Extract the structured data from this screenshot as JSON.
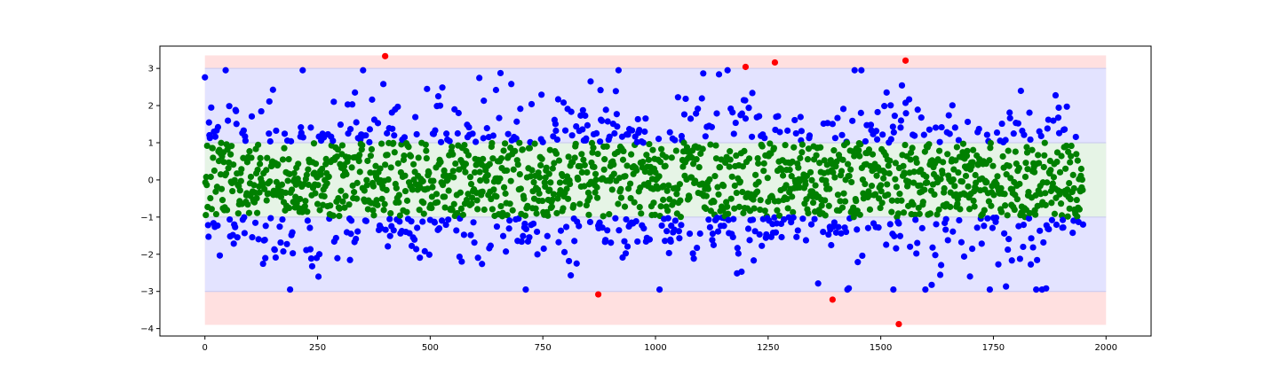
{
  "chart_data": {
    "type": "scatter",
    "title": "",
    "xlabel": "",
    "ylabel": "",
    "xlim": [
      -100,
      2100
    ],
    "ylim": [
      -4.2,
      3.6
    ],
    "x_ticks": [
      0,
      250,
      500,
      750,
      1000,
      1250,
      1500,
      1750,
      2000
    ],
    "x_tick_labels": [
      "0",
      "250",
      "500",
      "750",
      "1000",
      "1250",
      "1500",
      "1750",
      "2000"
    ],
    "y_ticks": [
      -4,
      -3,
      -2,
      -1,
      0,
      1,
      2,
      3
    ],
    "y_tick_labels": [
      "−4",
      "−3",
      "−2",
      "−1",
      "0",
      "1",
      "2",
      "3"
    ],
    "grid": false,
    "legend": "none",
    "bands": [
      {
        "y": [
          -3.9,
          3.35
        ],
        "x": [
          0,
          2000
        ],
        "color": "#ffe0e0"
      },
      {
        "y": [
          -3,
          3
        ],
        "x": [
          0,
          2000
        ],
        "color": "#e3e3ff"
      },
      {
        "y": [
          -1,
          1
        ],
        "x": [
          0,
          2000
        ],
        "color": "#e6f4e6"
      }
    ],
    "band_edge_color": "#c8c8ee",
    "sample": {
      "n": 1950,
      "x_start": 0,
      "x_step": 1,
      "seed": 7
    },
    "series": [
      {
        "color": "#008000",
        "rule": "|y| <= 1"
      },
      {
        "color": "#0000ff",
        "rule": "1 < |y| <= 3"
      },
      {
        "color": "#ff0000",
        "rule": "|y| > 3",
        "points": [
          [
            400,
            3.33
          ],
          [
            873,
            -3.08
          ],
          [
            1200,
            3.04
          ],
          [
            1265,
            3.16
          ],
          [
            1393,
            -3.22
          ],
          [
            1540,
            -3.88
          ],
          [
            1555,
            3.21
          ]
        ]
      }
    ]
  }
}
